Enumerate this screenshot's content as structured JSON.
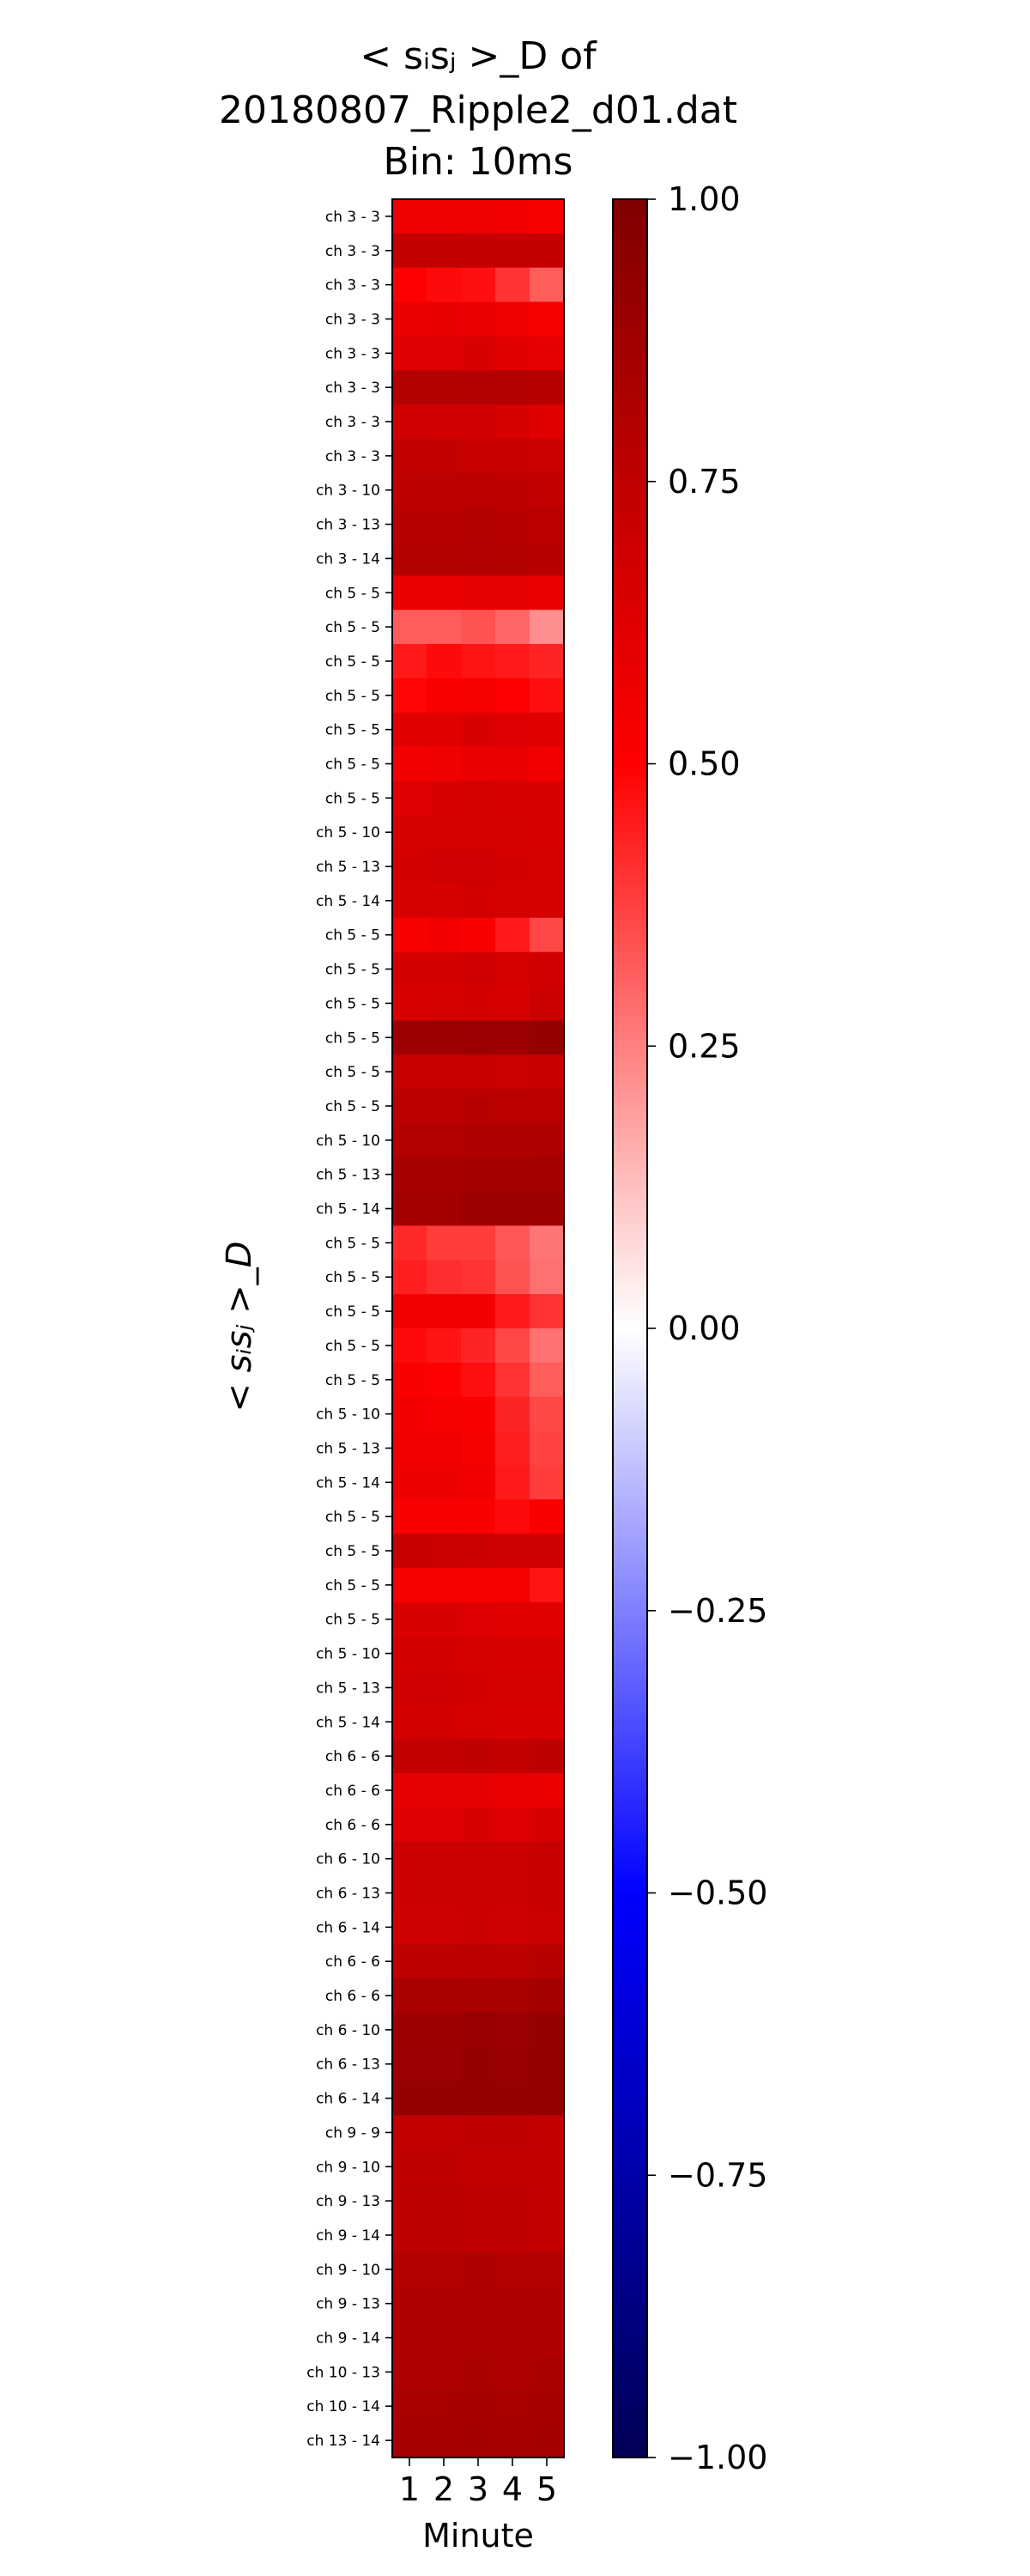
{
  "chart_data": {
    "type": "heatmap",
    "title_lines": [
      "< sᵢsⱼ >_D of",
      "20180807_Ripple2_d01.dat",
      "Bin: 10ms"
    ],
    "xlabel": "Minute",
    "ylabel": "< sᵢsⱼ >_D",
    "x": [
      "1",
      "2",
      "3",
      "4",
      "5"
    ],
    "row_labels": [
      "ch  3 -   3",
      "ch  3 -   3",
      "ch  3 -   3",
      "ch  3 -   3",
      "ch  3 -   3",
      "ch  3 -   3",
      "ch  3 -   3",
      "ch  3 -   3",
      "ch  3 - 10",
      "ch  3 - 13",
      "ch  3 - 14",
      "ch  5 -   5",
      "ch  5 -   5",
      "ch  5 -   5",
      "ch  5 -   5",
      "ch  5 -   5",
      "ch  5 -   5",
      "ch  5 -   5",
      "ch  5 - 10",
      "ch  5 - 13",
      "ch  5 - 14",
      "ch  5 -   5",
      "ch  5 -   5",
      "ch  5 -   5",
      "ch  5 -   5",
      "ch  5 -   5",
      "ch  5 -   5",
      "ch  5 - 10",
      "ch  5 - 13",
      "ch  5 - 14",
      "ch  5 -   5",
      "ch  5 -   5",
      "ch  5 -   5",
      "ch  5 -   5",
      "ch  5 -   5",
      "ch  5 - 10",
      "ch  5 - 13",
      "ch  5 - 14",
      "ch  5 -   5",
      "ch  5 -   5",
      "ch  5 -   5",
      "ch  5 -   5",
      "ch  5 - 10",
      "ch  5 - 13",
      "ch  5 - 14",
      "ch  6 -   6",
      "ch  6 -   6",
      "ch  6 -   6",
      "ch  6 - 10",
      "ch  6 - 13",
      "ch  6 - 14",
      "ch  6 -   6",
      "ch  6 -   6",
      "ch  6 - 10",
      "ch  6 - 13",
      "ch  6 - 14",
      "ch  9 -   9",
      "ch  9 - 10",
      "ch  9 - 13",
      "ch  9 - 14",
      "ch  9 - 10",
      "ch  9 - 13",
      "ch  9 - 14",
      "ch 10 - 13",
      "ch 10 - 14",
      "ch 13 - 14"
    ],
    "values": [
      [
        0.56,
        0.56,
        0.56,
        0.55,
        0.53
      ],
      [
        0.74,
        0.74,
        0.73,
        0.73,
        0.73
      ],
      [
        0.5,
        0.48,
        0.47,
        0.4,
        0.32
      ],
      [
        0.58,
        0.59,
        0.58,
        0.56,
        0.53
      ],
      [
        0.63,
        0.63,
        0.64,
        0.62,
        0.6
      ],
      [
        0.79,
        0.79,
        0.8,
        0.8,
        0.78
      ],
      [
        0.68,
        0.68,
        0.68,
        0.66,
        0.62
      ],
      [
        0.74,
        0.73,
        0.72,
        0.72,
        0.7
      ],
      [
        0.76,
        0.76,
        0.77,
        0.76,
        0.74
      ],
      [
        0.78,
        0.78,
        0.79,
        0.78,
        0.77
      ],
      [
        0.79,
        0.79,
        0.8,
        0.79,
        0.78
      ],
      [
        0.58,
        0.58,
        0.6,
        0.6,
        0.58
      ],
      [
        0.32,
        0.32,
        0.34,
        0.3,
        0.22
      ],
      [
        0.45,
        0.48,
        0.46,
        0.45,
        0.43
      ],
      [
        0.49,
        0.51,
        0.53,
        0.5,
        0.47
      ],
      [
        0.62,
        0.62,
        0.64,
        0.63,
        0.62
      ],
      [
        0.54,
        0.56,
        0.58,
        0.58,
        0.55
      ],
      [
        0.63,
        0.64,
        0.66,
        0.65,
        0.64
      ],
      [
        0.66,
        0.66,
        0.66,
        0.66,
        0.65
      ],
      [
        0.67,
        0.68,
        0.68,
        0.67,
        0.66
      ],
      [
        0.66,
        0.66,
        0.67,
        0.66,
        0.66
      ],
      [
        0.52,
        0.54,
        0.52,
        0.45,
        0.36
      ],
      [
        0.67,
        0.67,
        0.68,
        0.66,
        0.68
      ],
      [
        0.65,
        0.66,
        0.67,
        0.65,
        0.7
      ],
      [
        0.88,
        0.88,
        0.89,
        0.89,
        0.91
      ],
      [
        0.72,
        0.72,
        0.72,
        0.71,
        0.72
      ],
      [
        0.77,
        0.77,
        0.78,
        0.77,
        0.77
      ],
      [
        0.8,
        0.8,
        0.81,
        0.81,
        0.82
      ],
      [
        0.85,
        0.85,
        0.86,
        0.86,
        0.86
      ],
      [
        0.86,
        0.86,
        0.88,
        0.88,
        0.88
      ],
      [
        0.42,
        0.38,
        0.38,
        0.33,
        0.27
      ],
      [
        0.44,
        0.41,
        0.4,
        0.34,
        0.28
      ],
      [
        0.55,
        0.55,
        0.54,
        0.45,
        0.4
      ],
      [
        0.48,
        0.46,
        0.43,
        0.36,
        0.28
      ],
      [
        0.52,
        0.5,
        0.47,
        0.4,
        0.32
      ],
      [
        0.54,
        0.53,
        0.52,
        0.43,
        0.36
      ],
      [
        0.55,
        0.55,
        0.53,
        0.44,
        0.37
      ],
      [
        0.57,
        0.57,
        0.55,
        0.45,
        0.38
      ],
      [
        0.52,
        0.52,
        0.52,
        0.48,
        0.52
      ],
      [
        0.72,
        0.71,
        0.7,
        0.69,
        0.69
      ],
      [
        0.53,
        0.53,
        0.53,
        0.53,
        0.46
      ],
      [
        0.64,
        0.64,
        0.63,
        0.62,
        0.62
      ],
      [
        0.67,
        0.67,
        0.66,
        0.65,
        0.65
      ],
      [
        0.68,
        0.68,
        0.67,
        0.66,
        0.66
      ],
      [
        0.67,
        0.67,
        0.66,
        0.65,
        0.65
      ],
      [
        0.74,
        0.74,
        0.75,
        0.73,
        0.76
      ],
      [
        0.6,
        0.6,
        0.6,
        0.58,
        0.57
      ],
      [
        0.63,
        0.63,
        0.64,
        0.63,
        0.65
      ],
      [
        0.7,
        0.7,
        0.71,
        0.7,
        0.72
      ],
      [
        0.7,
        0.7,
        0.71,
        0.7,
        0.72
      ],
      [
        0.69,
        0.69,
        0.7,
        0.69,
        0.71
      ],
      [
        0.76,
        0.76,
        0.77,
        0.76,
        0.78
      ],
      [
        0.83,
        0.83,
        0.84,
        0.84,
        0.86
      ],
      [
        0.88,
        0.88,
        0.9,
        0.89,
        0.91
      ],
      [
        0.89,
        0.89,
        0.91,
        0.9,
        0.92
      ],
      [
        0.91,
        0.91,
        0.92,
        0.91,
        0.92
      ],
      [
        0.74,
        0.74,
        0.75,
        0.75,
        0.74
      ],
      [
        0.75,
        0.75,
        0.74,
        0.74,
        0.74
      ],
      [
        0.76,
        0.76,
        0.75,
        0.75,
        0.74
      ],
      [
        0.76,
        0.76,
        0.75,
        0.75,
        0.74
      ],
      [
        0.8,
        0.8,
        0.81,
        0.8,
        0.8
      ],
      [
        0.81,
        0.81,
        0.82,
        0.81,
        0.81
      ],
      [
        0.81,
        0.81,
        0.82,
        0.81,
        0.81
      ],
      [
        0.82,
        0.82,
        0.83,
        0.82,
        0.83
      ],
      [
        0.84,
        0.84,
        0.85,
        0.84,
        0.85
      ],
      [
        0.85,
        0.85,
        0.86,
        0.85,
        0.86
      ]
    ],
    "colorbar": {
      "vmin": -1.0,
      "vmax": 1.0,
      "ticks": [
        1.0,
        0.75,
        0.5,
        0.25,
        0.0,
        -0.25,
        -0.5,
        -0.75,
        -1.0
      ],
      "tick_labels": [
        "1.00",
        "0.75",
        "0.50",
        "0.25",
        "0.00",
        "−0.25",
        "−0.50",
        "−0.75",
        "−1.00"
      ],
      "colors": [
        "#000055",
        "#0000ff",
        "#ffffff",
        "#ff0000",
        "#800000"
      ]
    }
  }
}
